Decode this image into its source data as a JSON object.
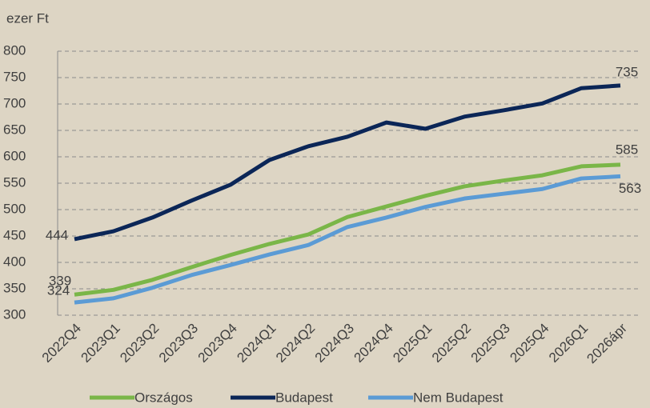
{
  "chart_data": {
    "type": "line",
    "y_axis_label": "ezer Ft",
    "categories": [
      "2022Q4",
      "2023Q1",
      "2023Q2",
      "2023Q3",
      "2023Q4",
      "2024Q1",
      "2024Q2",
      "2024Q3",
      "2024Q4",
      "2025Q1",
      "2025Q2",
      "2025Q3",
      "2025Q4",
      "2026Q1",
      "2026ápr"
    ],
    "series": [
      {
        "name": "Országos",
        "color": "#7ab648",
        "values": [
          339,
          348,
          367,
          391,
          414,
          435,
          453,
          486,
          506,
          526,
          544,
          555,
          565,
          582,
          585
        ]
      },
      {
        "name": "Budapest",
        "color": "#0b2657",
        "values": [
          444,
          459,
          485,
          517,
          547,
          594,
          620,
          638,
          665,
          653,
          676,
          688,
          701,
          730,
          735
        ]
      },
      {
        "name": "Nem Budapest",
        "color": "#5b9bd5",
        "values": [
          324,
          332,
          352,
          376,
          395,
          415,
          433,
          467,
          485,
          505,
          521,
          530,
          539,
          559,
          563
        ]
      }
    ],
    "ylim": [
      300,
      800
    ],
    "yticks": [
      300,
      350,
      400,
      450,
      500,
      550,
      600,
      650,
      700,
      750,
      800
    ],
    "grid": true
  }
}
